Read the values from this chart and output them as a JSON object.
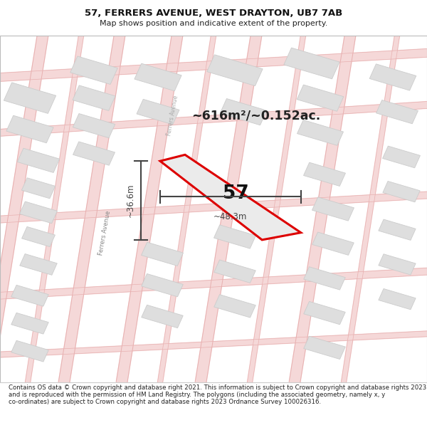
{
  "title": "57, FERRERS AVENUE, WEST DRAYTON, UB7 7AB",
  "subtitle": "Map shows position and indicative extent of the property.",
  "footer": "Contains OS data © Crown copyright and database right 2021. This information is subject to Crown copyright and database rights 2023 and is reproduced with the permission of HM Land Registry. The polygons (including the associated geometry, namely x, y co-ordinates) are subject to Crown copyright and database rights 2023 Ordnance Survey 100026316.",
  "area_label": "~616m²/~0.152ac.",
  "number_label": "57",
  "width_label": "~48.3m",
  "height_label": "~36.6m",
  "map_bg": "#f9f9f9",
  "header_bg": "#ffffff",
  "footer_bg": "#ffffff",
  "plot_border_color": "#dd0000",
  "plot_fill_color": "#eeeeee",
  "road_color_fill": "#f5d8d8",
  "road_color_edge": "#e8b0b0",
  "building_color": "#dedede",
  "building_edge": "#cccccc",
  "dim_color": "#444444",
  "label_color": "#222222",
  "road_label_color": "#888888"
}
